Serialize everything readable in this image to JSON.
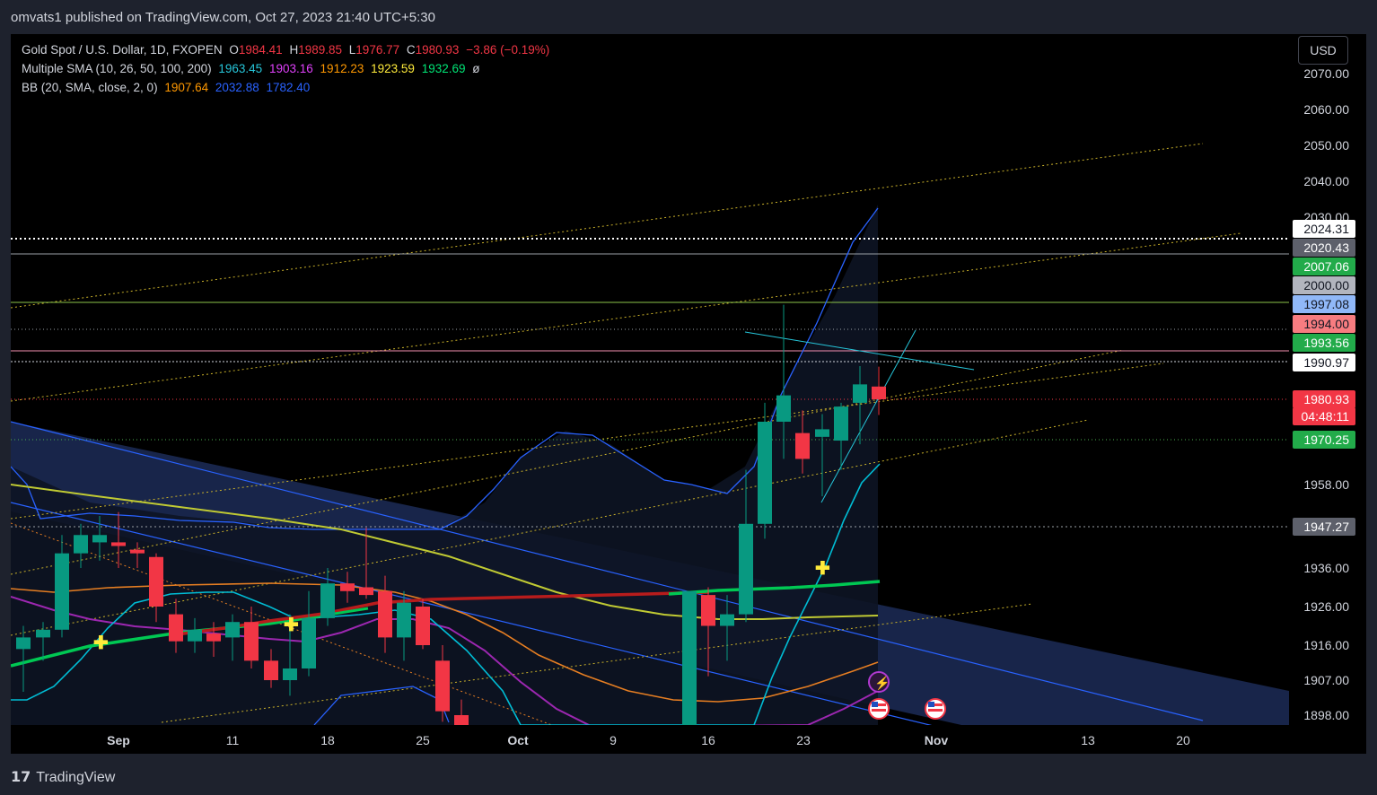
{
  "header": {
    "text": "omvats1 published on TradingView.com, Oct 27, 2023 21:40 UTC+5:30"
  },
  "legend": {
    "symbol": {
      "name": "Gold Spot / U.S. Dollar, 1D, FXOPEN",
      "o_label": "O",
      "o": "1984.41",
      "h_label": "H",
      "h": "1989.85",
      "l_label": "L",
      "l": "1976.77",
      "c_label": "C",
      "c": "1980.93",
      "chg": "−3.86 (−0.19%)"
    },
    "sma": {
      "name": "Multiple SMA (10, 26, 50, 100, 200)",
      "v1": "1963.45",
      "v2": "1903.16",
      "v3": "1912.23",
      "v4": "1923.59",
      "v5": "1932.69",
      "extra": "ø"
    },
    "bb": {
      "name": "BB (20, SMA, close, 2, 0)",
      "basis": "1907.64",
      "upper": "2032.88",
      "lower": "1782.40"
    }
  },
  "currency_button": "USD",
  "footer": {
    "logo": "𝟭𝟳",
    "brand": "TradingView"
  },
  "colors": {
    "up": "#089981",
    "down": "#f23645",
    "sma10": "#26c6da",
    "sma26": "#e040fb",
    "sma50": "#ff9800",
    "sma100": "#ffeb3b",
    "sma200": "#00e676",
    "bb": "#2962ff"
  },
  "chart_data": {
    "type": "candlestick",
    "title": "Gold Spot / U.S. Dollar, 1D, FXOPEN",
    "y_ticks": [
      "2070.00",
      "2060.00",
      "2050.00",
      "2040.00",
      "2030.00",
      "1958.00",
      "1936.00",
      "1926.00",
      "1916.00",
      "1907.00",
      "1898.00"
    ],
    "x_ticks": [
      "Sep",
      "11",
      "18",
      "25",
      "Oct",
      "9",
      "16",
      "23",
      "Nov",
      "13",
      "20"
    ],
    "price_labels": [
      {
        "text": "2024.31",
        "style": "white"
      },
      {
        "text": "2020.43",
        "style": "gray"
      },
      {
        "text": "2007.06",
        "style": "green"
      },
      {
        "text": "2000.00",
        "style": "lightgray"
      },
      {
        "text": "1997.08",
        "style": "blue"
      },
      {
        "text": "1994.00",
        "style": "red"
      },
      {
        "text": "1993.56",
        "style": "green"
      },
      {
        "text": "1990.97",
        "style": "white"
      },
      {
        "text": "1980.93",
        "style": "redbig"
      },
      {
        "text": "04:48:11",
        "style": "redbig"
      },
      {
        "text": "1970.25",
        "style": "green"
      },
      {
        "text": "1947.27",
        "style": "gray"
      }
    ],
    "candles": [
      {
        "d": "Aug 29",
        "o": 1915,
        "h": 1921,
        "l": 1904,
        "c": 1918
      },
      {
        "d": "Aug 30",
        "o": 1918,
        "h": 1922,
        "l": 1912,
        "c": 1920
      },
      {
        "d": "Aug 31",
        "o": 1920,
        "h": 1945,
        "l": 1918,
        "c": 1940
      },
      {
        "d": "Sep 1",
        "o": 1940,
        "h": 1948,
        "l": 1936,
        "c": 1945
      },
      {
        "d": "Sep 4",
        "o": 1943,
        "h": 1950,
        "l": 1938,
        "c": 1945
      },
      {
        "d": "Sep 5",
        "o": 1943,
        "h": 1951,
        "l": 1936,
        "c": 1942
      },
      {
        "d": "Sep 6",
        "o": 1941,
        "h": 1943,
        "l": 1936,
        "c": 1940
      },
      {
        "d": "Sep 7",
        "o": 1939,
        "h": 1940,
        "l": 1922,
        "c": 1926
      },
      {
        "d": "Sep 8",
        "o": 1924,
        "h": 1928,
        "l": 1914,
        "c": 1917
      },
      {
        "d": "Sep 11",
        "o": 1917,
        "h": 1923,
        "l": 1914,
        "c": 1920
      },
      {
        "d": "Sep 12",
        "o": 1919,
        "h": 1922,
        "l": 1913,
        "c": 1917
      },
      {
        "d": "Sep 13",
        "o": 1918,
        "h": 1924,
        "l": 1912,
        "c": 1922
      },
      {
        "d": "Sep 14",
        "o": 1922,
        "h": 1926,
        "l": 1910,
        "c": 1912
      },
      {
        "d": "Sep 15",
        "o": 1912,
        "h": 1915,
        "l": 1905,
        "c": 1907
      },
      {
        "d": "Sep 18",
        "o": 1907,
        "h": 1924,
        "l": 1903,
        "c": 1910
      },
      {
        "d": "Sep 19",
        "o": 1910,
        "h": 1930,
        "l": 1908,
        "c": 1923
      },
      {
        "d": "Sep 20",
        "o": 1923,
        "h": 1936,
        "l": 1921,
        "c": 1932
      },
      {
        "d": "Sep 21",
        "o": 1932,
        "h": 1935,
        "l": 1927,
        "c": 1930
      },
      {
        "d": "Sep 22",
        "o": 1931,
        "h": 1947,
        "l": 1928,
        "c": 1929
      },
      {
        "d": "Sep 25",
        "o": 1930,
        "h": 1934,
        "l": 1914,
        "c": 1918
      },
      {
        "d": "Sep 26",
        "o": 1918,
        "h": 1930,
        "l": 1912,
        "c": 1927
      },
      {
        "d": "Sep 27",
        "o": 1926,
        "h": 1928,
        "l": 1915,
        "c": 1916
      },
      {
        "d": "Sep 28",
        "o": 1912,
        "h": 1916,
        "l": 1896,
        "c": 1899
      },
      {
        "d": "Sep 29",
        "o": 1898,
        "h": 1902,
        "l": 1880,
        "c": 1883
      },
      {
        "d": "Oct 13",
        "o": 1870,
        "h": 1930,
        "l": 1865,
        "c": 1930
      },
      {
        "d": "Oct 16",
        "o": 1929,
        "h": 1931,
        "l": 1908,
        "c": 1921
      },
      {
        "d": "Oct 17",
        "o": 1921,
        "h": 1929,
        "l": 1912,
        "c": 1924
      },
      {
        "d": "Oct 18",
        "o": 1924,
        "h": 1962,
        "l": 1922,
        "c": 1948
      },
      {
        "d": "Oct 19",
        "o": 1948,
        "h": 1980,
        "l": 1944,
        "c": 1975
      },
      {
        "d": "Oct 20",
        "o": 1975,
        "h": 1997,
        "l": 1965,
        "c": 1982
      },
      {
        "d": "Oct 23",
        "o": 1972,
        "h": 1978,
        "l": 1961,
        "c": 1965
      },
      {
        "d": "Oct 24",
        "o": 1971,
        "h": 1977,
        "l": 1955,
        "c": 1973
      },
      {
        "d": "Oct 25",
        "o": 1970,
        "h": 1980,
        "l": 1962,
        "c": 1979
      },
      {
        "d": "Oct 26",
        "o": 1980,
        "h": 1990,
        "l": 1969,
        "c": 1985
      },
      {
        "d": "Oct 27",
        "o": 1984.41,
        "h": 1989.85,
        "l": 1976.77,
        "c": 1980.93
      }
    ]
  }
}
